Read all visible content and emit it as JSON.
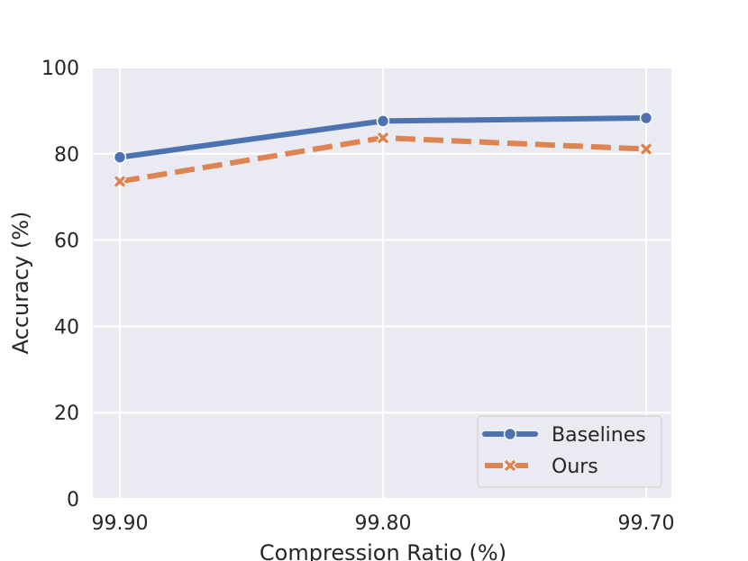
{
  "chart_data": {
    "type": "line",
    "title": "",
    "xlabel": "Compression Ratio (%)",
    "ylabel": "Accuracy (%)",
    "categories": [
      "99.90",
      "99.80",
      "99.70"
    ],
    "ylim": [
      0,
      100
    ],
    "yticks": [
      "0",
      "20",
      "40",
      "60",
      "80",
      "100"
    ],
    "grid": true,
    "legend_position": "lower right",
    "series": [
      {
        "name": "Baselines",
        "values": [
          79.2,
          87.6,
          88.3
        ],
        "color": "#4c72b0",
        "marker": "circle",
        "linestyle": "solid"
      },
      {
        "name": "Ours",
        "values": [
          73.6,
          83.7,
          81.1
        ],
        "color": "#dd8452",
        "marker": "x",
        "linestyle": "dashed"
      }
    ]
  }
}
